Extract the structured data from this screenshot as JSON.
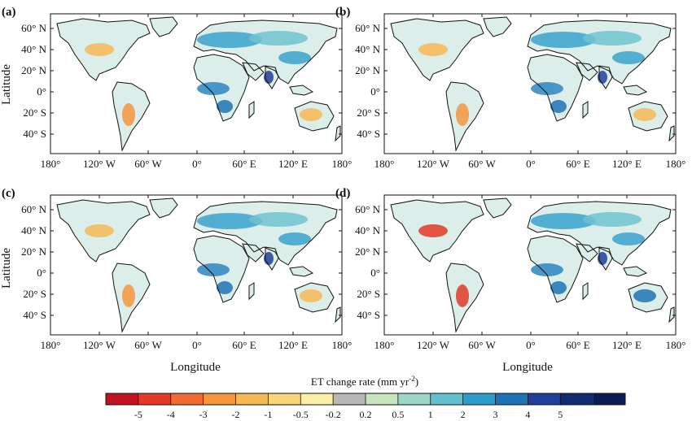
{
  "axes": {
    "ylabel": "Latitude",
    "xlabel": "Longitude",
    "lat_ticks": [
      "60° N",
      "40° N",
      "20° N",
      "0°",
      "20° S",
      "40° S"
    ],
    "lon_ticks": [
      "180°",
      "120° W",
      "60° W",
      "0°",
      "60° E",
      "120° E",
      "180°"
    ]
  },
  "panels": [
    {
      "label": "(a)"
    },
    {
      "label": "(b)"
    },
    {
      "label": "(c)"
    },
    {
      "label": "(d)"
    }
  ],
  "colorbar": {
    "title": "ET change rate (mm yr",
    "title_sup": "-2",
    "title_end": ")",
    "colors": [
      "#c1121f",
      "#e33a27",
      "#f26b30",
      "#f5963e",
      "#f7b955",
      "#f8d678",
      "#faf0a8",
      "#b8b8b8",
      "#c7e6c0",
      "#9cd7c8",
      "#62c0d1",
      "#2e9ccb",
      "#1e73b5",
      "#203f99",
      "#112a72",
      "#0a1c54"
    ],
    "tick_labels": [
      "-5",
      "-4",
      "-3",
      "-2",
      "-1",
      "-0.5",
      "-0.2",
      "0.2",
      "0.5",
      "1",
      "2",
      "3",
      "4",
      "5"
    ]
  }
}
